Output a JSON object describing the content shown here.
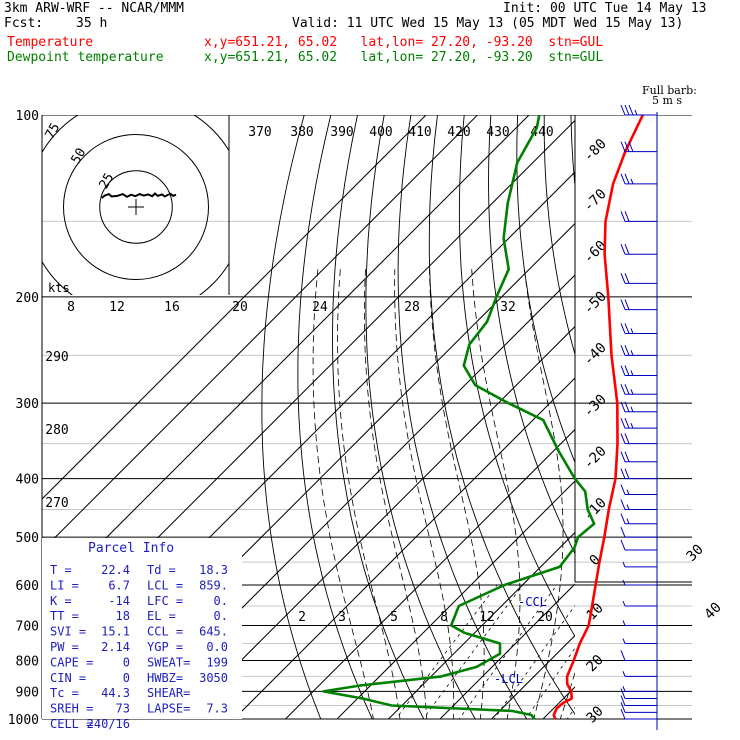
{
  "header": {
    "model": "3km ARW-WRF -- NCAR/MMM",
    "init": "Init: 00 UTC Tue 14 May 13",
    "fcst_label": "Fcst:",
    "fcst_value": "35 h",
    "valid": "Valid: 11 UTC Wed 15 May 13 (05 MDT Wed 15 May 13)",
    "temp_label": "Temperature",
    "temp_loc": "x,y=651.21, 65.02   lat,lon= 27.20, -93.20  stn=GUL",
    "dew_label": "Dewpoint temperature",
    "dew_loc": "x,y=651.21, 65.02   lat,lon= 27.20, -93.20  stn=GUL",
    "colors": {
      "temperature": "#ff0000",
      "dewpoint": "#008000",
      "text": "#000000",
      "parcel_info": "#2020c0"
    }
  },
  "chart_data": {
    "type": "line",
    "subtype": "skew-T log-P",
    "y_axis": {
      "scale": "log",
      "unit": "hPa",
      "range": [
        1000,
        100
      ],
      "ticks": [
        "100",
        "200",
        "300",
        "400",
        "500",
        "600",
        "700",
        "800",
        "900",
        "1000"
      ]
    },
    "isotherm_labels": [
      "-80",
      "-70",
      "-60",
      "-50",
      "-40",
      "-30",
      "-20",
      "-10",
      "0",
      "10",
      "20",
      "30",
      "40"
    ],
    "theta_labels": [
      "370",
      "380",
      "390",
      "400",
      "410",
      "420",
      "430",
      "440"
    ],
    "theta_left_labels": [
      "290",
      "280",
      "270"
    ],
    "mixing_ratio_labels": [
      "2",
      "3",
      "5",
      "8",
      "12",
      "20"
    ],
    "hodograph": {
      "rings": [
        "75",
        "50",
        "25"
      ],
      "unit_label": "kts"
    },
    "hodograph_scale": [
      "8",
      "12",
      "16",
      "20",
      "24",
      "28",
      "32"
    ],
    "wind_legend": "Full barb: 5 m s",
    "annotations": [
      "CCL",
      "LCL"
    ],
    "series": [
      {
        "name": "Temperature",
        "color": "#ff0000",
        "pressure": [
          1000,
          985,
          960,
          940,
          925,
          900,
          875,
          850,
          800,
          750,
          700,
          650,
          600,
          550,
          500,
          450,
          400,
          350,
          300,
          250,
          200,
          170,
          150,
          130,
          115,
          100
        ],
        "temp": [
          22.4,
          21.3,
          20.6,
          20.8,
          21.6,
          20.1,
          17.9,
          16.4,
          14.6,
          12.5,
          10.7,
          7.6,
          4.2,
          0.5,
          -3.4,
          -7.9,
          -12.6,
          -19.0,
          -26.9,
          -37.3,
          -49.3,
          -58.3,
          -64.5,
          -70.3,
          -74.2,
          -77.9
        ]
      },
      {
        "name": "Dewpoint temperature",
        "color": "#008000",
        "pressure": [
          1000,
          985,
          970,
          950,
          925,
          900,
          880,
          850,
          820,
          780,
          750,
          720,
          700,
          650,
          600,
          560,
          520,
          500,
          475,
          450,
          420,
          400,
          360,
          320,
          300,
          280,
          260,
          240,
          220,
          200,
          180,
          160,
          140,
          120,
          105,
          100
        ],
        "dewpt": [
          18.3,
          17.0,
          12.5,
          -12.0,
          -19.0,
          -28.0,
          -22.0,
          -8.0,
          -3.0,
          -1.0,
          -3.0,
          -12.0,
          -16.0,
          -18.3,
          -13.5,
          -6.3,
          -7.2,
          -8.5,
          -8.0,
          -12.0,
          -16.0,
          -20.5,
          -29.0,
          -38.0,
          -48.0,
          -58.0,
          -64.0,
          -67.0,
          -68.0,
          -71.0,
          -74.0,
          -81.0,
          -87.0,
          -93.0,
          -96.0,
          -98.0
        ]
      }
    ],
    "hodograph_trace": {
      "u": [
        -1.5,
        -0.5,
        1,
        2,
        4,
        6,
        7.5,
        9,
        10.5,
        12,
        13.5,
        15,
        16.5,
        17.5,
        18.5,
        20,
        21,
        22,
        23,
        24,
        25
      ],
      "v": [
        4,
        4.8,
        5.3,
        4.5,
        4.7,
        5.3,
        4.4,
        5.1,
        4.6,
        5.3,
        4.8,
        5.2,
        4.6,
        5.5,
        4.7,
        5.2,
        4.5,
        5.0,
        5.4,
        4.7,
        5.1
      ]
    },
    "wind_profile": [
      {
        "p": 100,
        "spd": 35,
        "dir": 270
      },
      {
        "p": 115,
        "spd": 30,
        "dir": 265
      },
      {
        "p": 130,
        "spd": 25,
        "dir": 270
      },
      {
        "p": 150,
        "spd": 20,
        "dir": 275
      },
      {
        "p": 170,
        "spd": 20,
        "dir": 270
      },
      {
        "p": 190,
        "spd": 20,
        "dir": 265
      },
      {
        "p": 210,
        "spd": 20,
        "dir": 270
      },
      {
        "p": 230,
        "spd": 25,
        "dir": 270
      },
      {
        "p": 250,
        "spd": 25,
        "dir": 265
      },
      {
        "p": 270,
        "spd": 25,
        "dir": 270
      },
      {
        "p": 290,
        "spd": 25,
        "dir": 270
      },
      {
        "p": 310,
        "spd": 25,
        "dir": 265
      },
      {
        "p": 330,
        "spd": 25,
        "dir": 270
      },
      {
        "p": 350,
        "spd": 20,
        "dir": 270
      },
      {
        "p": 375,
        "spd": 20,
        "dir": 265
      },
      {
        "p": 400,
        "spd": 20,
        "dir": 270
      },
      {
        "p": 425,
        "spd": 15,
        "dir": 270
      },
      {
        "p": 450,
        "spd": 15,
        "dir": 265
      },
      {
        "p": 475,
        "spd": 15,
        "dir": 270
      },
      {
        "p": 500,
        "spd": 10,
        "dir": 270
      },
      {
        "p": 525,
        "spd": 10,
        "dir": 265
      },
      {
        "p": 560,
        "spd": 5,
        "dir": 250
      },
      {
        "p": 600,
        "spd": 5,
        "dir": 240
      },
      {
        "p": 650,
        "spd": 5,
        "dir": 230
      },
      {
        "p": 700,
        "spd": 5,
        "dir": 220
      },
      {
        "p": 750,
        "spd": 5,
        "dir": 210
      },
      {
        "p": 800,
        "spd": 10,
        "dir": 200
      },
      {
        "p": 850,
        "spd": 5,
        "dir": 190
      },
      {
        "p": 900,
        "spd": 5,
        "dir": 180
      },
      {
        "p": 925,
        "spd": 10,
        "dir": 175
      },
      {
        "p": 950,
        "spd": 10,
        "dir": 170
      },
      {
        "p": 975,
        "spd": 10,
        "dir": 165
      },
      {
        "p": 1000,
        "spd": 10,
        "dir": 160
      }
    ]
  },
  "parcel_info": {
    "title": "Parcel Info",
    "rows": [
      [
        "T  =",
        "22.4",
        "Td =",
        "18.3"
      ],
      [
        "LI =",
        "6.7",
        "LCL =",
        "859."
      ],
      [
        "K  =",
        "-14",
        "LFC =",
        "0."
      ],
      [
        "TT =",
        "18",
        "EL  =",
        "0."
      ],
      [
        "SVI =",
        "15.1",
        "CCL =",
        "645."
      ],
      [
        "PW =",
        "2.14",
        "YGP =",
        "0.0"
      ],
      [
        "CAPE =",
        "0",
        "SWEAT=",
        "199"
      ],
      [
        "CIN =",
        "0",
        "HWBZ=",
        "3050"
      ],
      [
        "Tc =",
        "44.3",
        "SHEAR=",
        ""
      ],
      [
        "SREH =",
        "73",
        "LAPSE=",
        "7.3"
      ],
      [
        "CELL =",
        "240/16",
        "",
        ""
      ]
    ]
  }
}
